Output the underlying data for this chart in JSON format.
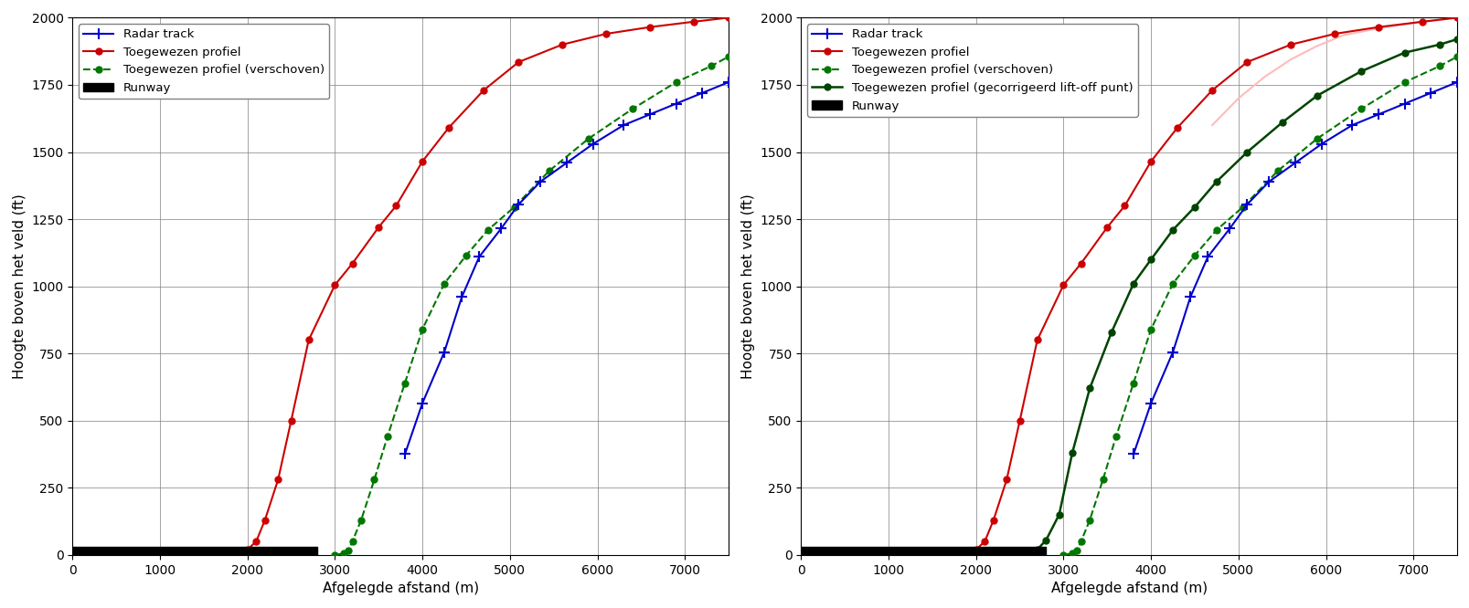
{
  "xlim": [
    0,
    7500
  ],
  "ylim": [
    0,
    2000
  ],
  "xlabel": "Afgelegde afstand (m)",
  "ylabel": "Hoogte boven het veld (ft)",
  "xticks": [
    0,
    1000,
    2000,
    3000,
    4000,
    5000,
    6000,
    7000
  ],
  "yticks": [
    0,
    250,
    500,
    750,
    1000,
    1250,
    1500,
    1750,
    2000
  ],
  "radar_x": [
    3800,
    4000,
    4250,
    4450,
    4650,
    4900,
    5100,
    5350,
    5650,
    5950,
    6300,
    6600,
    6900,
    7200,
    7500
  ],
  "radar_y": [
    375,
    565,
    755,
    960,
    1110,
    1215,
    1305,
    1390,
    1460,
    1530,
    1600,
    1640,
    1680,
    1720,
    1760
  ],
  "red_x": [
    1750,
    1900,
    2000,
    2100,
    2200,
    2350,
    2500,
    2700,
    3000,
    3200,
    3500,
    3700,
    4000,
    4300,
    4700,
    5100,
    5600,
    6100,
    6600,
    7100,
    7500
  ],
  "red_y": [
    0,
    10,
    20,
    50,
    130,
    280,
    500,
    800,
    1005,
    1085,
    1220,
    1300,
    1465,
    1590,
    1730,
    1835,
    1900,
    1940,
    1965,
    1985,
    2000
  ],
  "green_shifted_x": [
    3000,
    3100,
    3150,
    3200,
    3300,
    3450,
    3600,
    3800,
    4000,
    4250,
    4500,
    4750,
    5050,
    5450,
    5900,
    6400,
    6900,
    7300,
    7500
  ],
  "green_shifted_y": [
    0,
    5,
    15,
    50,
    130,
    280,
    440,
    640,
    840,
    1010,
    1115,
    1210,
    1295,
    1430,
    1550,
    1660,
    1760,
    1820,
    1855
  ],
  "green_corrected_x": [
    2500,
    2600,
    2700,
    2800,
    2950,
    3100,
    3300,
    3550,
    3800,
    4000,
    4250,
    4500,
    4750,
    5100,
    5500,
    5900,
    6400,
    6900,
    7300,
    7500
  ],
  "green_corrected_y": [
    0,
    5,
    20,
    55,
    150,
    380,
    620,
    830,
    1010,
    1100,
    1210,
    1295,
    1390,
    1500,
    1610,
    1710,
    1800,
    1870,
    1900,
    1920
  ],
  "runway_x_start": 0,
  "runway_x_end": 2800,
  "runway_height": 30,
  "color_radar": "#0000cc",
  "color_red": "#cc0000",
  "color_green_shifted": "#007700",
  "color_green_corrected": "#004400",
  "color_pink": "#ffbbbb",
  "pink_x": [
    4700,
    5000,
    5300,
    5600,
    5900,
    6200,
    6600,
    7000,
    7500
  ],
  "pink_y": [
    1600,
    1700,
    1780,
    1845,
    1895,
    1935,
    1960,
    1980,
    2000
  ],
  "figsize": [
    16.08,
    6.66
  ],
  "dpi": 100
}
